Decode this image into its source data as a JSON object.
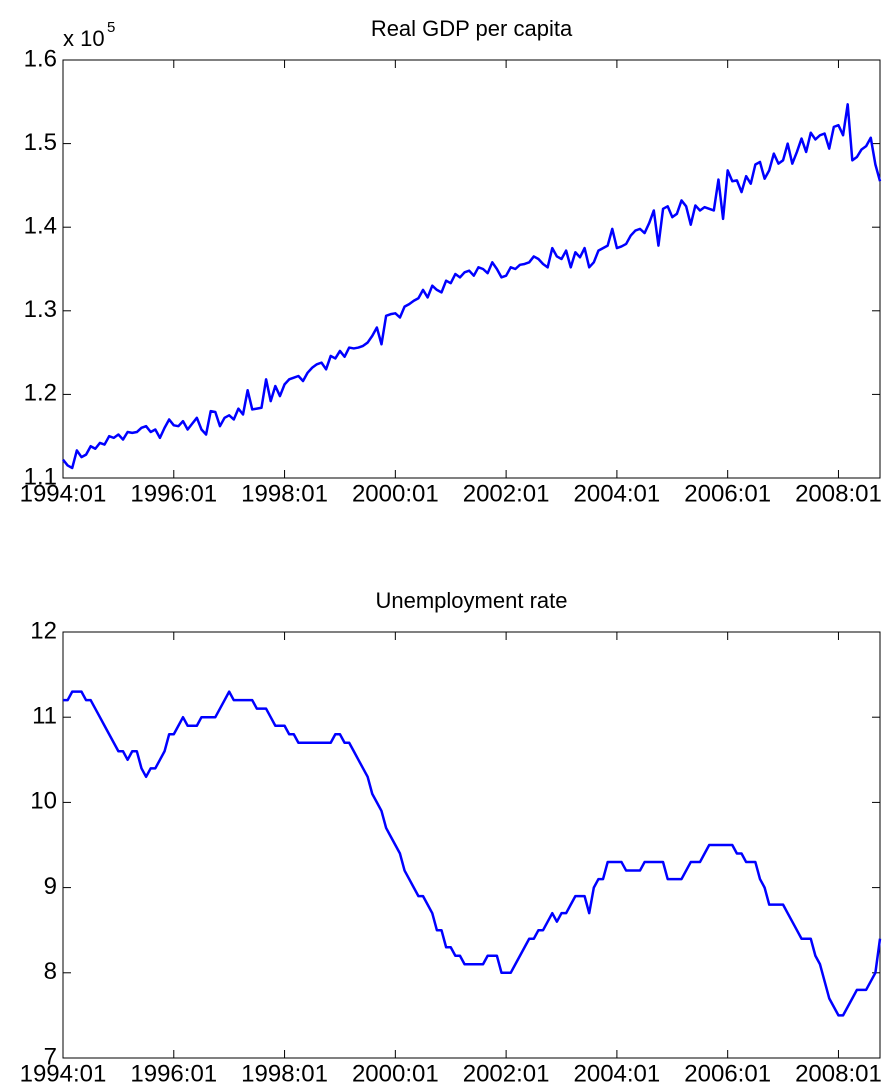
{
  "chart_data": [
    {
      "type": "line",
      "title": "Real GDP per capita",
      "scale_label": "x 10",
      "scale_exponent": "5",
      "x": [
        "1994:01",
        "1994:02",
        "1994:03",
        "1994:04",
        "1994:05",
        "1994:06",
        "1994:07",
        "1994:08",
        "1994:09",
        "1994:10",
        "1994:11",
        "1994:12",
        "1995:01",
        "1995:02",
        "1995:03",
        "1995:04",
        "1995:05",
        "1995:06",
        "1995:07",
        "1995:08",
        "1995:09",
        "1995:10",
        "1995:11",
        "1995:12",
        "1996:01",
        "1996:02",
        "1996:03",
        "1996:04",
        "1996:05",
        "1996:06",
        "1996:07",
        "1996:08",
        "1996:09",
        "1996:10",
        "1996:11",
        "1996:12",
        "1997:01",
        "1997:02",
        "1997:03",
        "1997:04",
        "1997:05",
        "1997:06",
        "1997:07",
        "1997:08",
        "1997:09",
        "1997:10",
        "1997:11",
        "1997:12",
        "1998:01",
        "1998:02",
        "1998:03",
        "1998:04",
        "1998:05",
        "1998:06",
        "1998:07",
        "1998:08",
        "1998:09",
        "1998:10",
        "1998:11",
        "1998:12",
        "1999:01",
        "1999:02",
        "1999:03",
        "1999:04",
        "1999:05",
        "1999:06",
        "1999:07",
        "1999:08",
        "1999:09",
        "1999:10",
        "1999:11",
        "1999:12",
        "2000:01",
        "2000:02",
        "2000:03",
        "2000:04",
        "2000:05",
        "2000:06",
        "2000:07",
        "2000:08",
        "2000:09",
        "2000:10",
        "2000:11",
        "2000:12",
        "2001:01",
        "2001:02",
        "2001:03",
        "2001:04",
        "2001:05",
        "2001:06",
        "2001:07",
        "2001:08",
        "2001:09",
        "2001:10",
        "2001:11",
        "2001:12",
        "2002:01",
        "2002:02",
        "2002:03",
        "2002:04",
        "2002:05",
        "2002:06",
        "2002:07",
        "2002:08",
        "2002:09",
        "2002:10",
        "2002:11",
        "2002:12",
        "2003:01",
        "2003:02",
        "2003:03",
        "2003:04",
        "2003:05",
        "2003:06",
        "2003:07",
        "2003:08",
        "2003:09",
        "2003:10",
        "2003:11",
        "2003:12",
        "2004:01",
        "2004:02",
        "2004:03",
        "2004:04",
        "2004:05",
        "2004:06",
        "2004:07",
        "2004:08",
        "2004:09",
        "2004:10",
        "2004:11",
        "2004:12",
        "2005:01",
        "2005:02",
        "2005:03",
        "2005:04",
        "2005:05",
        "2005:06",
        "2005:07",
        "2005:08",
        "2005:09",
        "2005:10",
        "2005:11",
        "2005:12",
        "2006:01",
        "2006:02",
        "2006:03",
        "2006:04",
        "2006:05",
        "2006:06",
        "2006:07",
        "2006:08",
        "2006:09",
        "2006:10",
        "2006:11",
        "2006:12",
        "2007:01",
        "2007:02",
        "2007:03",
        "2007:04",
        "2007:05",
        "2007:06",
        "2007:07",
        "2007:08",
        "2007:09",
        "2007:10",
        "2007:11",
        "2007:12",
        "2008:01",
        "2008:02",
        "2008:03",
        "2008:04",
        "2008:05",
        "2008:06",
        "2008:07",
        "2008:08",
        "2008:09",
        "2008:10"
      ],
      "series": [
        {
          "color": "#0000ff",
          "values": [
            1.122,
            1.115,
            1.112,
            1.133,
            1.125,
            1.128,
            1.138,
            1.135,
            1.142,
            1.14,
            1.15,
            1.148,
            1.152,
            1.146,
            1.155,
            1.154,
            1.155,
            1.16,
            1.162,
            1.155,
            1.158,
            1.148,
            1.16,
            1.17,
            1.163,
            1.162,
            1.168,
            1.158,
            1.165,
            1.172,
            1.158,
            1.152,
            1.18,
            1.179,
            1.162,
            1.172,
            1.175,
            1.17,
            1.183,
            1.176,
            1.205,
            1.182,
            1.183,
            1.184,
            1.218,
            1.192,
            1.21,
            1.198,
            1.212,
            1.218,
            1.22,
            1.222,
            1.216,
            1.226,
            1.232,
            1.236,
            1.238,
            1.23,
            1.246,
            1.243,
            1.252,
            1.245,
            1.256,
            1.255,
            1.256,
            1.258,
            1.262,
            1.27,
            1.28,
            1.26,
            1.294,
            1.296,
            1.297,
            1.292,
            1.305,
            1.308,
            1.312,
            1.315,
            1.325,
            1.316,
            1.33,
            1.325,
            1.322,
            1.336,
            1.333,
            1.344,
            1.34,
            1.346,
            1.348,
            1.342,
            1.352,
            1.35,
            1.345,
            1.358,
            1.35,
            1.34,
            1.342,
            1.352,
            1.35,
            1.355,
            1.356,
            1.358,
            1.365,
            1.362,
            1.356,
            1.352,
            1.375,
            1.365,
            1.362,
            1.372,
            1.352,
            1.37,
            1.364,
            1.375,
            1.352,
            1.358,
            1.372,
            1.375,
            1.378,
            1.398,
            1.375,
            1.377,
            1.38,
            1.39,
            1.396,
            1.398,
            1.393,
            1.405,
            1.42,
            1.378,
            1.422,
            1.425,
            1.412,
            1.416,
            1.432,
            1.425,
            1.403,
            1.426,
            1.42,
            1.424,
            1.422,
            1.42,
            1.457,
            1.41,
            1.468,
            1.455,
            1.456,
            1.442,
            1.461,
            1.452,
            1.475,
            1.478,
            1.458,
            1.468,
            1.488,
            1.476,
            1.48,
            1.5,
            1.476,
            1.49,
            1.506,
            1.49,
            1.513,
            1.505,
            1.51,
            1.512,
            1.494,
            1.52,
            1.522,
            1.51,
            1.547,
            1.48,
            1.484,
            1.493,
            1.497,
            1.507,
            1.475,
            1.455
          ]
        }
      ],
      "xticks": [
        "1994:01",
        "1996:01",
        "1998:01",
        "2000:01",
        "2002:01",
        "2004:01",
        "2006:01",
        "2008:01"
      ],
      "ylim": [
        1.1,
        1.6
      ],
      "yticks": [
        1.1,
        1.2,
        1.3,
        1.4,
        1.5,
        1.6
      ],
      "grid": false
    },
    {
      "type": "line",
      "title": "Unemployment rate",
      "x": [
        "1994:01",
        "1994:02",
        "1994:03",
        "1994:04",
        "1994:05",
        "1994:06",
        "1994:07",
        "1994:08",
        "1994:09",
        "1994:10",
        "1994:11",
        "1994:12",
        "1995:01",
        "1995:02",
        "1995:03",
        "1995:04",
        "1995:05",
        "1995:06",
        "1995:07",
        "1995:08",
        "1995:09",
        "1995:10",
        "1995:11",
        "1995:12",
        "1996:01",
        "1996:02",
        "1996:03",
        "1996:04",
        "1996:05",
        "1996:06",
        "1996:07",
        "1996:08",
        "1996:09",
        "1996:10",
        "1996:11",
        "1996:12",
        "1997:01",
        "1997:02",
        "1997:03",
        "1997:04",
        "1997:05",
        "1997:06",
        "1997:07",
        "1997:08",
        "1997:09",
        "1997:10",
        "1997:11",
        "1997:12",
        "1998:01",
        "1998:02",
        "1998:03",
        "1998:04",
        "1998:05",
        "1998:06",
        "1998:07",
        "1998:08",
        "1998:09",
        "1998:10",
        "1998:11",
        "1998:12",
        "1999:01",
        "1999:02",
        "1999:03",
        "1999:04",
        "1999:05",
        "1999:06",
        "1999:07",
        "1999:08",
        "1999:09",
        "1999:10",
        "1999:11",
        "1999:12",
        "2000:01",
        "2000:02",
        "2000:03",
        "2000:04",
        "2000:05",
        "2000:06",
        "2000:07",
        "2000:08",
        "2000:09",
        "2000:10",
        "2000:11",
        "2000:12",
        "2001:01",
        "2001:02",
        "2001:03",
        "2001:04",
        "2001:05",
        "2001:06",
        "2001:07",
        "2001:08",
        "2001:09",
        "2001:10",
        "2001:11",
        "2001:12",
        "2002:01",
        "2002:02",
        "2002:03",
        "2002:04",
        "2002:05",
        "2002:06",
        "2002:07",
        "2002:08",
        "2002:09",
        "2002:10",
        "2002:11",
        "2002:12",
        "2003:01",
        "2003:02",
        "2003:03",
        "2003:04",
        "2003:05",
        "2003:06",
        "2003:07",
        "2003:08",
        "2003:09",
        "2003:10",
        "2003:11",
        "2003:12",
        "2004:01",
        "2004:02",
        "2004:03",
        "2004:04",
        "2004:05",
        "2004:06",
        "2004:07",
        "2004:08",
        "2004:09",
        "2004:10",
        "2004:11",
        "2004:12",
        "2005:01",
        "2005:02",
        "2005:03",
        "2005:04",
        "2005:05",
        "2005:06",
        "2005:07",
        "2005:08",
        "2005:09",
        "2005:10",
        "2005:11",
        "2005:12",
        "2006:01",
        "2006:02",
        "2006:03",
        "2006:04",
        "2006:05",
        "2006:06",
        "2006:07",
        "2006:08",
        "2006:09",
        "2006:10",
        "2006:11",
        "2006:12",
        "2007:01",
        "2007:02",
        "2007:03",
        "2007:04",
        "2007:05",
        "2007:06",
        "2007:07",
        "2007:08",
        "2007:09",
        "2007:10",
        "2007:11",
        "2007:12",
        "2008:01",
        "2008:02",
        "2008:03",
        "2008:04",
        "2008:05",
        "2008:06",
        "2008:07",
        "2008:08",
        "2008:09",
        "2008:10"
      ],
      "series": [
        {
          "color": "#0000ff",
          "values": [
            11.2,
            11.2,
            11.3,
            11.3,
            11.3,
            11.2,
            11.2,
            11.1,
            11.0,
            10.9,
            10.8,
            10.7,
            10.6,
            10.6,
            10.5,
            10.6,
            10.6,
            10.4,
            10.3,
            10.4,
            10.4,
            10.5,
            10.6,
            10.8,
            10.8,
            10.9,
            11.0,
            10.9,
            10.9,
            10.9,
            11.0,
            11.0,
            11.0,
            11.0,
            11.1,
            11.2,
            11.3,
            11.2,
            11.2,
            11.2,
            11.2,
            11.2,
            11.1,
            11.1,
            11.1,
            11.0,
            10.9,
            10.9,
            10.9,
            10.8,
            10.8,
            10.7,
            10.7,
            10.7,
            10.7,
            10.7,
            10.7,
            10.7,
            10.7,
            10.8,
            10.8,
            10.7,
            10.7,
            10.6,
            10.5,
            10.4,
            10.3,
            10.1,
            10.0,
            9.9,
            9.7,
            9.6,
            9.5,
            9.4,
            9.2,
            9.1,
            9.0,
            8.9,
            8.9,
            8.8,
            8.7,
            8.5,
            8.5,
            8.3,
            8.3,
            8.2,
            8.2,
            8.1,
            8.1,
            8.1,
            8.1,
            8.1,
            8.2,
            8.2,
            8.2,
            8.0,
            8.0,
            8.0,
            8.1,
            8.2,
            8.3,
            8.4,
            8.4,
            8.5,
            8.5,
            8.6,
            8.7,
            8.6,
            8.7,
            8.7,
            8.8,
            8.9,
            8.9,
            8.9,
            8.7,
            9.0,
            9.1,
            9.1,
            9.3,
            9.3,
            9.3,
            9.3,
            9.2,
            9.2,
            9.2,
            9.2,
            9.3,
            9.3,
            9.3,
            9.3,
            9.3,
            9.1,
            9.1,
            9.1,
            9.1,
            9.2,
            9.3,
            9.3,
            9.3,
            9.4,
            9.5,
            9.5,
            9.5,
            9.5,
            9.5,
            9.5,
            9.4,
            9.4,
            9.3,
            9.3,
            9.3,
            9.1,
            9.0,
            8.8,
            8.8,
            8.8,
            8.8,
            8.7,
            8.6,
            8.5,
            8.4,
            8.4,
            8.4,
            8.2,
            8.1,
            7.9,
            7.7,
            7.6,
            7.5,
            7.5,
            7.6,
            7.7,
            7.8,
            7.8,
            7.8,
            7.9,
            8.0,
            8.4
          ]
        }
      ],
      "xticks": [
        "1994:01",
        "1996:01",
        "1998:01",
        "2000:01",
        "2002:01",
        "2004:01",
        "2006:01",
        "2008:01"
      ],
      "ylim": [
        7,
        12
      ],
      "yticks": [
        7,
        8,
        9,
        10,
        11,
        12
      ],
      "grid": false
    }
  ]
}
